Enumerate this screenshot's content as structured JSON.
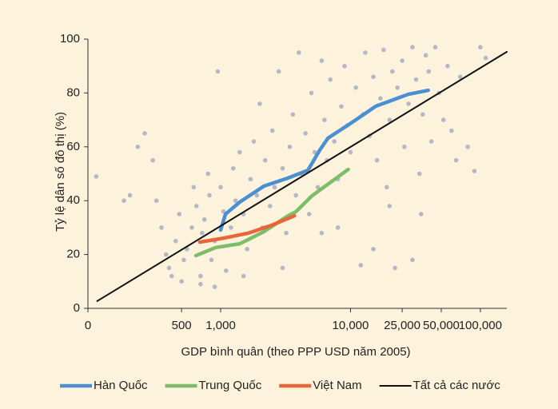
{
  "chart_data": {
    "type": "scatter",
    "xscale": "log",
    "x_label": "GDP bình quân (theo PPP USD năm 2005)",
    "y_label": "Tỷ lệ dân số đô thị (%)",
    "xlim": [
      95,
      160000
    ],
    "ylim": [
      0,
      100
    ],
    "xticks": [
      0,
      500,
      {
        "value": 1000,
        "label": "1,000"
      },
      {
        "value": 10000,
        "label": "10,000"
      },
      {
        "value": 25000,
        "label": "25,000"
      },
      {
        "value": 50000,
        "label": "50,000"
      },
      {
        "value": 100000,
        "label": "100,000"
      }
    ],
    "yticks": [
      0,
      20,
      40,
      60,
      80,
      100
    ],
    "points": {
      "color": "#b3b8c8",
      "x": [
        110,
        180,
        200,
        230,
        260,
        300,
        320,
        350,
        380,
        400,
        420,
        450,
        480,
        500,
        520,
        550,
        600,
        620,
        650,
        700,
        720,
        750,
        800,
        820,
        850,
        900,
        950,
        1000,
        1050,
        1100,
        1200,
        1250,
        1300,
        1400,
        1500,
        1600,
        1700,
        1800,
        1900,
        2000,
        2100,
        2200,
        2400,
        2500,
        2600,
        2800,
        3000,
        3200,
        3400,
        3600,
        3800,
        4000,
        4200,
        4500,
        4800,
        5000,
        5300,
        5600,
        6000,
        6300,
        6600,
        7000,
        7500,
        8000,
        8500,
        9000,
        9500,
        10000,
        11000,
        12000,
        12500,
        13000,
        14000,
        15000,
        16000,
        17000,
        18000,
        19000,
        20000,
        21000,
        22000,
        23000,
        25000,
        26000,
        28000,
        30000,
        32000,
        34000,
        36000,
        38000,
        40000,
        42000,
        45000,
        48000,
        52000,
        56000,
        60000,
        65000,
        70000,
        80000,
        90000,
        100000,
        110000,
        30000,
        35000,
        20000,
        15000,
        8000,
        6000,
        3000,
        1500,
        700,
        900
      ],
      "values": [
        49,
        40,
        42,
        60,
        65,
        55,
        40,
        30,
        20,
        15,
        12,
        25,
        35,
        10,
        18,
        22,
        30,
        45,
        38,
        12,
        28,
        33,
        50,
        42,
        18,
        25,
        88,
        45,
        36,
        14,
        30,
        52,
        40,
        58,
        35,
        22,
        48,
        62,
        42,
        76,
        30,
        55,
        38,
        66,
        45,
        88,
        52,
        28,
        60,
        72,
        42,
        95,
        50,
        65,
        35,
        80,
        58,
        45,
        92,
        70,
        55,
        85,
        62,
        48,
        75,
        90,
        68,
        58,
        82,
        16,
        72,
        95,
        64,
        86,
        55,
        78,
        96,
        45,
        70,
        88,
        15,
        82,
        92,
        60,
        76,
        97,
        85,
        50,
        72,
        94,
        88,
        62,
        97,
        80,
        70,
        90,
        66,
        55,
        86,
        60,
        51,
        97,
        93,
        18,
        35,
        38,
        22,
        30,
        28,
        15,
        12,
        9,
        8
      ]
    },
    "series": [
      {
        "name": "Hàn Quốc",
        "color": "#4a8fd2",
        "x": [
          1000,
          1089,
          1406,
          2153,
          3300,
          4700,
          5800,
          6700,
          10300,
          15700,
          27800,
          39700
        ],
        "values": [
          29.1,
          35,
          39.5,
          45.4,
          48.4,
          51.3,
          58.8,
          63.2,
          69.1,
          75.1,
          79.5,
          81
        ]
      },
      {
        "name": "Trung Quốc",
        "color": "#7cbd6a",
        "x": [
          644,
          918,
          1406,
          2153,
          3300,
          3800,
          5050,
          9600
        ],
        "values": [
          19.6,
          22.6,
          24,
          28.5,
          34.4,
          35.9,
          41.8,
          51.6
        ]
      },
      {
        "name": "Việt Nam",
        "color": "#e8663a",
        "x": [
          691,
          1058,
          1620,
          2480,
          3700
        ],
        "values": [
          24.6,
          26.1,
          27.9,
          30.9,
          34.4
        ]
      },
      {
        "name": "Tất cả các nước",
        "color": "#111111",
        "x": [
          112,
          160000
        ],
        "values": [
          2.7,
          95.3
        ]
      }
    ]
  }
}
